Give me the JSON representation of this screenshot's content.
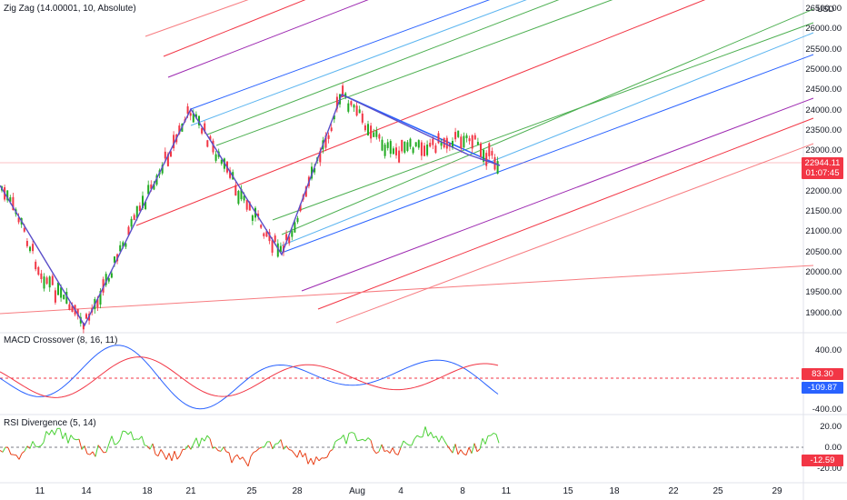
{
  "indicators": {
    "zigzag_label": "Zig Zag (14.00001, 10, Absolute)",
    "macd_label": "MACD Crossover (8, 16, 11)",
    "rsi_label": "RSI Divergence (5, 14)"
  },
  "price_axis": {
    "currency": "USD",
    "ticks": [
      "26500.00",
      "26000.00",
      "25500.00",
      "25000.00",
      "24500.00",
      "24000.00",
      "23500.00",
      "23000.00",
      "22500.00",
      "22000.00",
      "21500.00",
      "21000.00",
      "20500.00",
      "20000.00",
      "19500.00",
      "19000.00"
    ],
    "last_price": "22944.11",
    "countdown": "01:07:45",
    "last_price_color": "#f23645"
  },
  "macd_axis": {
    "ticks": [
      "400.00",
      "-400.00"
    ],
    "value_1": "83.30",
    "value_2": "-109.87",
    "color_1": "#f23645",
    "color_2": "#2962ff"
  },
  "rsi_axis": {
    "ticks": [
      "20.00",
      "0.00",
      "-20.00"
    ],
    "value": "-12.59",
    "color": "#f23645"
  },
  "time_axis": {
    "labels": [
      "11",
      "14",
      "18",
      "21",
      "25",
      "28",
      "Aug",
      "4",
      "8",
      "11",
      "15",
      "18",
      "22",
      "25",
      "29"
    ]
  },
  "colors": {
    "up": "#089981",
    "down": "#f23645",
    "upbright": "#22ab22",
    "zigzag": "#5b4ec9",
    "macd": "#2962ff",
    "signal": "#f23645"
  }
}
